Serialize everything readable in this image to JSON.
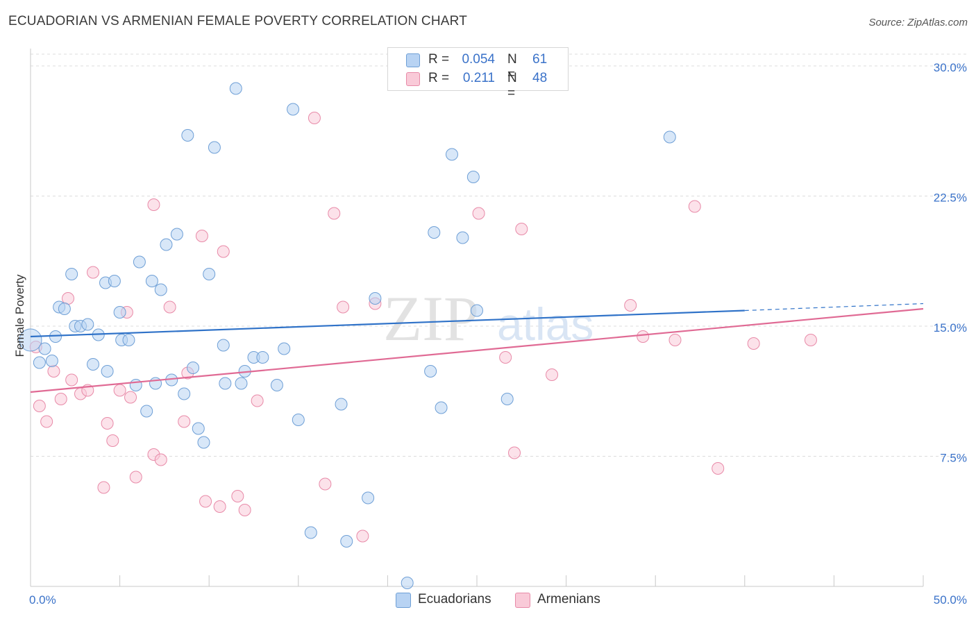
{
  "header": {
    "title": "ECUADORIAN VS ARMENIAN FEMALE POVERTY CORRELATION CHART",
    "source": "Source: ZipAtlas.com"
  },
  "legend": {
    "rows": [
      {
        "r_label": "R =",
        "r_value": "0.054",
        "n_label": "N =",
        "n_value": "61"
      },
      {
        "r_label": "R =",
        "r_value": "0.211",
        "n_label": "N =",
        "n_value": "48"
      }
    ]
  },
  "watermark": {
    "zip": "ZIP",
    "atlas": "atlas"
  },
  "colors": {
    "ecuadorians_fill": "#b8d3f3",
    "ecuadorians_stroke": "#6e9fd6",
    "ecuadorians_line": "#2f72c8",
    "armenians_fill": "#f9cad8",
    "armenians_stroke": "#e88aa8",
    "armenians_line": "#e06a94",
    "tick_label": "#3a72c9",
    "grid": "#dcdcdc"
  },
  "chart_data": {
    "type": "scatter",
    "title": "ECUADORIAN VS ARMENIAN FEMALE POVERTY CORRELATION CHART",
    "xlabel": "",
    "ylabel": "Female Poverty",
    "xlim": [
      0,
      50
    ],
    "ylim": [
      0,
      31
    ],
    "x_tick_labels": [
      "0.0%",
      "50.0%"
    ],
    "y_ticks": [
      7.5,
      15.0,
      22.5,
      30.0
    ],
    "y_tick_labels": [
      "7.5%",
      "15.0%",
      "22.5%",
      "30.0%"
    ],
    "grid": true,
    "legend_position": "top-center",
    "series": [
      {
        "name": "Ecuadorians",
        "r": 0.054,
        "n": 61,
        "trend": {
          "x0": 0,
          "y0": 14.4,
          "x1": 40,
          "y1": 15.9,
          "dash_to_x": 50,
          "dash_to_y": 16.3
        },
        "points": [
          [
            0.0,
            14.2,
            1
          ],
          [
            0.8,
            13.7,
            0
          ],
          [
            0.5,
            12.9,
            0
          ],
          [
            1.2,
            13.0,
            0
          ],
          [
            1.4,
            14.4,
            0
          ],
          [
            1.6,
            16.1,
            0
          ],
          [
            1.9,
            16.0,
            0
          ],
          [
            2.3,
            18.0,
            0
          ],
          [
            2.5,
            15.0,
            0
          ],
          [
            2.8,
            15.0,
            0
          ],
          [
            3.2,
            15.1,
            0
          ],
          [
            3.5,
            12.8,
            0
          ],
          [
            3.8,
            14.5,
            0
          ],
          [
            4.2,
            17.5,
            0
          ],
          [
            4.3,
            12.4,
            0
          ],
          [
            4.7,
            17.6,
            0
          ],
          [
            5.0,
            15.8,
            0
          ],
          [
            5.1,
            14.2,
            0
          ],
          [
            5.5,
            14.2,
            0
          ],
          [
            5.9,
            11.6,
            0
          ],
          [
            6.1,
            18.7,
            0
          ],
          [
            6.5,
            10.1,
            0
          ],
          [
            6.8,
            17.6,
            0
          ],
          [
            7.0,
            11.7,
            0
          ],
          [
            7.3,
            17.1,
            0
          ],
          [
            7.6,
            19.7,
            0
          ],
          [
            7.9,
            11.9,
            0
          ],
          [
            8.2,
            20.3,
            0
          ],
          [
            8.6,
            11.1,
            0
          ],
          [
            8.8,
            26.0,
            0
          ],
          [
            9.1,
            12.6,
            0
          ],
          [
            9.4,
            9.1,
            0
          ],
          [
            9.7,
            8.3,
            0
          ],
          [
            10.0,
            18.0,
            0
          ],
          [
            10.3,
            25.3,
            0
          ],
          [
            10.8,
            13.9,
            0
          ],
          [
            10.9,
            11.7,
            0
          ],
          [
            11.5,
            28.7,
            0
          ],
          [
            11.8,
            11.7,
            0
          ],
          [
            12.0,
            12.4,
            0
          ],
          [
            12.5,
            13.2,
            0
          ],
          [
            13.0,
            13.2,
            0
          ],
          [
            13.8,
            11.6,
            0
          ],
          [
            14.2,
            13.7,
            0
          ],
          [
            14.7,
            27.5,
            0
          ],
          [
            15.0,
            9.6,
            0
          ],
          [
            15.7,
            3.1,
            0
          ],
          [
            17.4,
            10.5,
            0
          ],
          [
            17.7,
            2.6,
            0
          ],
          [
            18.9,
            5.1,
            0
          ],
          [
            19.3,
            16.6,
            0
          ],
          [
            21.1,
            0.2,
            0
          ],
          [
            22.4,
            12.4,
            0
          ],
          [
            22.6,
            20.4,
            0
          ],
          [
            23.0,
            10.3,
            0
          ],
          [
            23.6,
            24.9,
            0
          ],
          [
            24.2,
            20.1,
            0
          ],
          [
            24.8,
            23.6,
            0
          ],
          [
            25.0,
            15.9,
            0
          ],
          [
            26.7,
            10.8,
            0
          ],
          [
            35.8,
            25.9,
            0
          ]
        ]
      },
      {
        "name": "Armenians",
        "r": 0.211,
        "n": 48,
        "trend": {
          "x0": 0,
          "y0": 11.2,
          "x1": 50,
          "y1": 16.0
        },
        "points": [
          [
            0.3,
            13.8,
            0
          ],
          [
            0.5,
            10.4,
            0
          ],
          [
            0.9,
            9.5,
            0
          ],
          [
            1.3,
            12.4,
            0
          ],
          [
            1.7,
            10.8,
            0
          ],
          [
            2.1,
            16.6,
            0
          ],
          [
            2.3,
            11.9,
            0
          ],
          [
            2.8,
            11.1,
            0
          ],
          [
            3.2,
            11.3,
            0
          ],
          [
            3.5,
            18.1,
            0
          ],
          [
            4.1,
            5.7,
            0
          ],
          [
            4.3,
            9.4,
            0
          ],
          [
            4.6,
            8.4,
            0
          ],
          [
            5.0,
            11.3,
            0
          ],
          [
            5.4,
            15.8,
            0
          ],
          [
            5.6,
            10.9,
            0
          ],
          [
            5.9,
            6.3,
            0
          ],
          [
            6.9,
            22.0,
            0
          ],
          [
            6.9,
            7.6,
            0
          ],
          [
            7.3,
            7.3,
            0
          ],
          [
            7.8,
            16.1,
            0
          ],
          [
            8.6,
            9.5,
            0
          ],
          [
            8.8,
            12.3,
            0
          ],
          [
            9.6,
            20.2,
            0
          ],
          [
            9.8,
            4.9,
            0
          ],
          [
            10.6,
            4.6,
            0
          ],
          [
            10.8,
            19.3,
            0
          ],
          [
            11.6,
            5.2,
            0
          ],
          [
            12.0,
            4.4,
            0
          ],
          [
            12.7,
            10.7,
            0
          ],
          [
            15.9,
            27.0,
            0
          ],
          [
            16.5,
            5.9,
            0
          ],
          [
            17.0,
            21.5,
            0
          ],
          [
            17.5,
            16.1,
            0
          ],
          [
            18.6,
            2.9,
            0
          ],
          [
            19.3,
            16.3,
            0
          ],
          [
            25.1,
            21.5,
            0
          ],
          [
            26.6,
            13.2,
            0
          ],
          [
            27.1,
            7.7,
            0
          ],
          [
            27.5,
            20.6,
            0
          ],
          [
            29.2,
            12.2,
            0
          ],
          [
            33.6,
            16.2,
            0
          ],
          [
            34.3,
            14.4,
            0
          ],
          [
            36.1,
            14.2,
            0
          ],
          [
            37.2,
            21.9,
            0
          ],
          [
            38.5,
            6.8,
            0
          ],
          [
            40.5,
            14.0,
            0
          ],
          [
            43.7,
            14.2,
            0
          ]
        ]
      }
    ]
  },
  "bottom_legend": {
    "items": [
      "Ecuadorians",
      "Armenians"
    ]
  }
}
